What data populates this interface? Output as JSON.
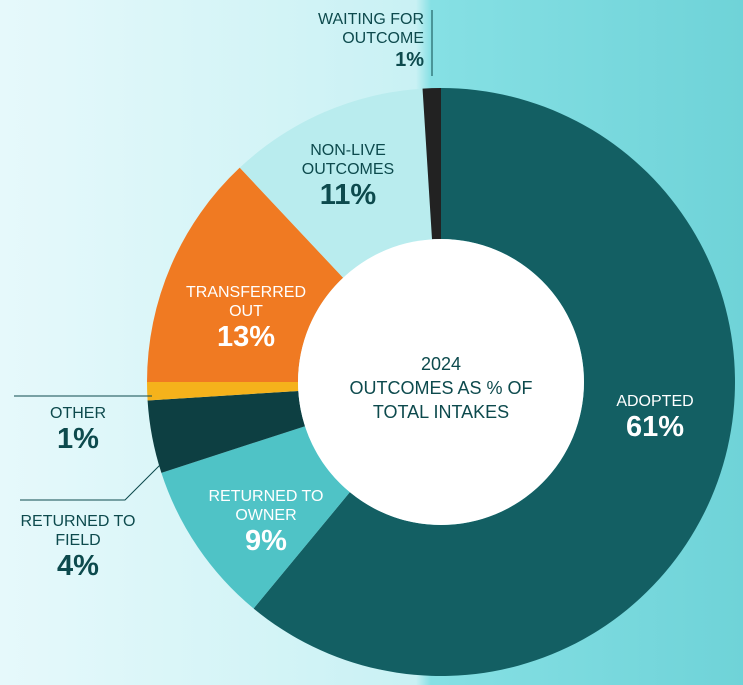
{
  "chart_data": {
    "type": "donut",
    "title": "2024",
    "subtitle": "OUTCOMES AS % OF TOTAL INTAKES",
    "categories": [
      "ADOPTED",
      "RETURNED TO OWNER",
      "RETURNED TO FIELD",
      "OTHER",
      "TRANSFERRED OUT",
      "NON-LIVE OUTCOMES",
      "WAITING FOR OUTCOME"
    ],
    "values": [
      61,
      9,
      4,
      1,
      13,
      11,
      1
    ],
    "value_labels": [
      "61%",
      "9%",
      "4%",
      "1%",
      "13%",
      "11%",
      "1%"
    ],
    "colors": [
      "#135f63",
      "#4fc3c6",
      "#0d3f42",
      "#f5b21b",
      "#f07a22",
      "#b9ecee",
      "#222222"
    ]
  }
}
